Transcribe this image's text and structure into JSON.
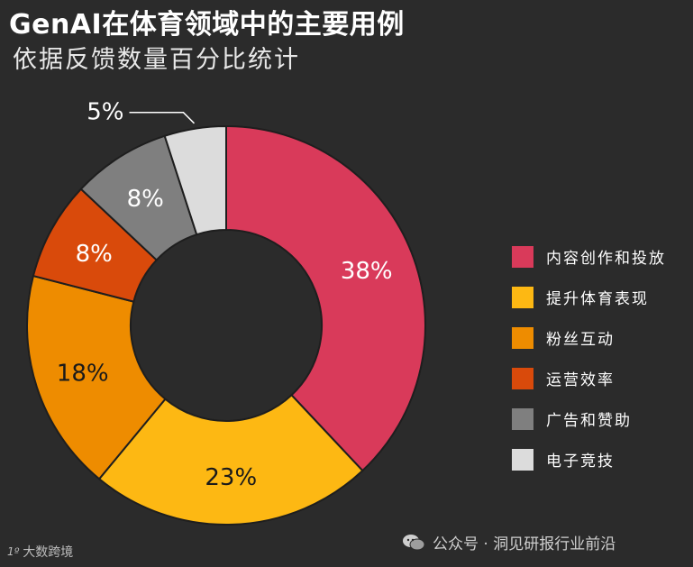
{
  "header": {
    "title": "GenAI在体育领域中的主要用例",
    "subtitle": "依据反馈数量百分比统计"
  },
  "chart_data": {
    "type": "pie",
    "variant": "donut",
    "unit": "%",
    "categories": [
      "内容创作和投放",
      "提升体育表现",
      "粉丝互动",
      "运营效率",
      "广告和赞助",
      "电子竞技"
    ],
    "values": [
      38,
      23,
      18,
      8,
      8,
      5
    ],
    "labels": [
      "38%",
      "23%",
      "18%",
      "8%",
      "8%",
      "5%"
    ],
    "colors": [
      "#d93a5a",
      "#fdb813",
      "#ee8c00",
      "#d94a0b",
      "#7f7f7f",
      "#dcdcdc"
    ],
    "legend": "right"
  },
  "watermark": {
    "icon": "wechat-icon",
    "text": "公众号 · 洞见研报行业前沿"
  },
  "logo": {
    "mark": "1º",
    "text": "大数跨境"
  }
}
